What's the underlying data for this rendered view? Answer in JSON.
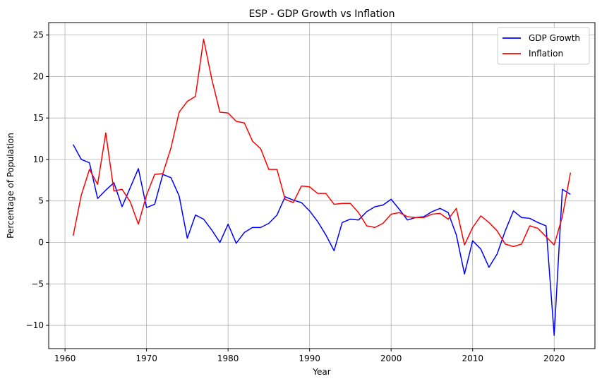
{
  "chart_data": {
    "type": "line",
    "title": "ESP - GDP Growth vs Inflation",
    "xlabel": "Year",
    "ylabel": "Percentage of Population",
    "xlim": [
      1958,
      2025
    ],
    "ylim": [
      -12.8,
      26.5
    ],
    "xticks": [
      1960,
      1970,
      1980,
      1990,
      2000,
      2010,
      2020
    ],
    "yticks": [
      -10,
      -5,
      0,
      5,
      10,
      15,
      20,
      25
    ],
    "grid": true,
    "legend_position": "top-right",
    "x": [
      1961,
      1962,
      1963,
      1964,
      1965,
      1966,
      1967,
      1968,
      1969,
      1970,
      1971,
      1972,
      1973,
      1974,
      1975,
      1976,
      1977,
      1978,
      1979,
      1980,
      1981,
      1982,
      1983,
      1984,
      1985,
      1986,
      1987,
      1988,
      1989,
      1990,
      1991,
      1992,
      1993,
      1994,
      1995,
      1996,
      1997,
      1998,
      1999,
      2000,
      2001,
      2002,
      2003,
      2004,
      2005,
      2006,
      2007,
      2008,
      2009,
      2010,
      2011,
      2012,
      2013,
      2014,
      2015,
      2016,
      2017,
      2018,
      2019,
      2020,
      2021,
      2022
    ],
    "series": [
      {
        "name": "GDP Growth",
        "color": "#0000ff",
        "values": [
          11.8,
          10.0,
          9.6,
          5.3,
          6.3,
          7.2,
          4.3,
          6.6,
          8.9,
          4.2,
          4.6,
          8.2,
          7.8,
          5.6,
          0.5,
          3.3,
          2.8,
          1.5,
          0.0,
          2.2,
          -0.1,
          1.2,
          1.8,
          1.8,
          2.3,
          3.3,
          5.5,
          5.1,
          4.8,
          3.8,
          2.5,
          0.9,
          -1.0,
          2.4,
          2.8,
          2.7,
          3.7,
          4.3,
          4.5,
          5.2,
          4.0,
          2.7,
          3.0,
          3.1,
          3.7,
          4.1,
          3.6,
          0.9,
          -3.8,
          0.2,
          -0.8,
          -3.0,
          -1.4,
          1.4,
          3.8,
          3.0,
          2.9,
          2.4,
          2.0,
          -11.2,
          6.4,
          5.8
        ]
      },
      {
        "name": "Inflation",
        "color": "#ff0000",
        "values": [
          0.8,
          5.7,
          8.8,
          7.0,
          13.2,
          6.2,
          6.4,
          4.9,
          2.2,
          5.7,
          8.2,
          8.3,
          11.4,
          15.7,
          17.0,
          17.6,
          24.5,
          19.7,
          15.7,
          15.6,
          14.6,
          14.4,
          12.2,
          11.3,
          8.8,
          8.8,
          5.2,
          4.8,
          6.8,
          6.7,
          5.9,
          5.9,
          4.6,
          4.7,
          4.7,
          3.6,
          2.0,
          1.8,
          2.3,
          3.4,
          3.6,
          3.1,
          3.0,
          3.0,
          3.4,
          3.5,
          2.8,
          4.1,
          -0.3,
          1.8,
          3.2,
          2.4,
          1.4,
          -0.2,
          -0.5,
          -0.2,
          2.0,
          1.7,
          0.7,
          -0.3,
          3.1,
          8.4
        ]
      }
    ]
  }
}
